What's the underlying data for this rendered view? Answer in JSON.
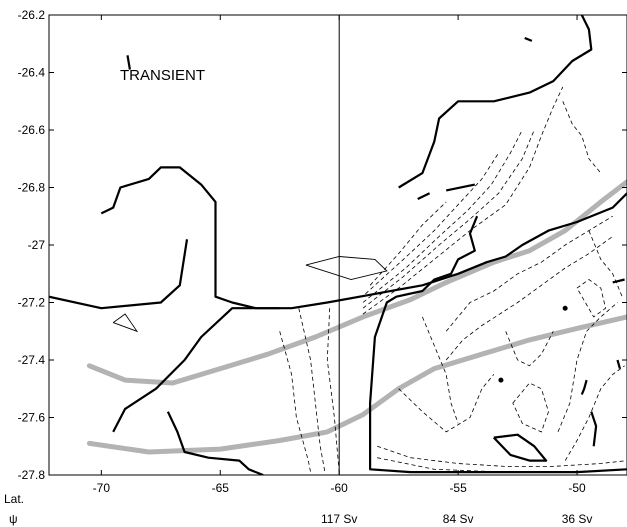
{
  "chart_data": {
    "type": "contour",
    "title": "",
    "xlabel": "",
    "ylabel": "",
    "xlim": [
      -72.2,
      -47.9
    ],
    "ylim": [
      -27.8,
      -26.2
    ],
    "x_ticks": [
      -70,
      -65,
      -60,
      -55,
      -50
    ],
    "y_ticks": [
      -26.2,
      -26.4,
      -26.6,
      -26.8,
      -27,
      -27.2,
      -27.4,
      -27.6,
      -27.8
    ],
    "y_tick_labels": [
      "-26.2",
      "-26.4",
      "-26.6",
      "-26.8",
      "-27",
      "-27.2",
      "-27.4",
      "-27.6",
      "-27.8"
    ],
    "x_tick_labels": [
      "-70",
      "-65",
      "-60",
      "-55",
      "-50"
    ],
    "annotation": "TRANSIENT",
    "row_labels": {
      "x": "Lat.",
      "psi": "ψ"
    },
    "transport_labels": [
      {
        "x": -60,
        "label": "117 Sv"
      },
      {
        "x": -55,
        "label": "84 Sv"
      },
      {
        "x": -50,
        "label": "36 Sv"
      }
    ],
    "vertical_line_x": -60,
    "gray_lines": [
      [
        [
          -70.5,
          -27.42
        ],
        [
          -69,
          -27.47
        ],
        [
          -67,
          -27.48
        ],
        [
          -65,
          -27.43
        ],
        [
          -63,
          -27.38
        ],
        [
          -61,
          -27.32
        ],
        [
          -59,
          -27.25
        ],
        [
          -57,
          -27.19
        ],
        [
          -55.5,
          -27.13
        ],
        [
          -53.5,
          -27.06
        ],
        [
          -52,
          -27.02
        ],
        [
          -50.5,
          -26.95
        ],
        [
          -49,
          -26.85
        ],
        [
          -47.9,
          -26.78
        ]
      ],
      [
        [
          -70.5,
          -27.69
        ],
        [
          -68,
          -27.72
        ],
        [
          -65,
          -27.71
        ],
        [
          -62.5,
          -27.68
        ],
        [
          -60.5,
          -27.65
        ],
        [
          -59,
          -27.59
        ],
        [
          -57.5,
          -27.5
        ],
        [
          -56,
          -27.43
        ],
        [
          -54,
          -27.38
        ],
        [
          -52,
          -27.33
        ],
        [
          -50,
          -27.29
        ],
        [
          -47.9,
          -27.25
        ]
      ]
    ],
    "solid_contours": [
      [
        [
          -72.2,
          -27.18
        ],
        [
          -70,
          -27.22
        ],
        [
          -67.5,
          -27.2
        ],
        [
          -66.7,
          -27.14
        ],
        [
          -66.4,
          -26.98
        ]
      ],
      [
        [
          -70,
          -26.89
        ],
        [
          -69.5,
          -26.87
        ],
        [
          -69.2,
          -26.8
        ],
        [
          -68,
          -26.77
        ],
        [
          -67.5,
          -26.73
        ],
        [
          -66.7,
          -26.73
        ],
        [
          -65.8,
          -26.79
        ],
        [
          -65.2,
          -26.85
        ],
        [
          -65.2,
          -27.18
        ],
        [
          -64.5,
          -27.2
        ],
        [
          -63.5,
          -27.22
        ],
        [
          -62,
          -27.22
        ],
        [
          -60.5,
          -27.2
        ],
        [
          -58.5,
          -27.17
        ],
        [
          -56.5,
          -27.14
        ],
        [
          -55,
          -27.1
        ],
        [
          -53.8,
          -27.06
        ],
        [
          -53,
          -27.04
        ],
        [
          -52.3,
          -27.0
        ],
        [
          -51.2,
          -26.95
        ],
        [
          -50,
          -26.92
        ],
        [
          -48.5,
          -26.87
        ],
        [
          -47.9,
          -26.82
        ]
      ],
      [
        [
          -69.5,
          -27.65
        ],
        [
          -69,
          -27.57
        ],
        [
          -67.7,
          -27.5
        ],
        [
          -66.5,
          -27.4
        ],
        [
          -65.8,
          -27.32
        ],
        [
          -64.5,
          -27.22
        ],
        [
          -62.5,
          -27.22
        ]
      ],
      [
        [
          -67.2,
          -27.58
        ],
        [
          -66.8,
          -27.65
        ],
        [
          -66.5,
          -27.72
        ],
        [
          -65.5,
          -27.74
        ],
        [
          -64.2,
          -27.75
        ],
        [
          -63.8,
          -27.78
        ],
        [
          -63.2,
          -27.8
        ]
      ],
      [
        [
          -57.5,
          -26.8
        ],
        [
          -56.5,
          -26.75
        ],
        [
          -56,
          -26.64
        ],
        [
          -55.8,
          -26.56
        ],
        [
          -55,
          -26.5
        ],
        [
          -53.5,
          -26.5
        ],
        [
          -52,
          -26.47
        ],
        [
          -51,
          -26.43
        ],
        [
          -50.2,
          -26.36
        ],
        [
          -49.4,
          -26.32
        ],
        [
          -49.5,
          -26.25
        ],
        [
          -49.8,
          -26.2
        ]
      ],
      [
        [
          -54.2,
          -26.9
        ],
        [
          -54.5,
          -26.96
        ],
        [
          -54.3,
          -27.02
        ],
        [
          -55,
          -27.05
        ],
        [
          -55.3,
          -27.1
        ],
        [
          -56,
          -27.12
        ],
        [
          -56.5,
          -27.16
        ],
        [
          -57.6,
          -27.18
        ],
        [
          -58,
          -27.2
        ],
        [
          -58.5,
          -27.32
        ],
        [
          -58.7,
          -27.55
        ],
        [
          -58.7,
          -27.78
        ],
        [
          -57,
          -27.79
        ],
        [
          -55,
          -27.79
        ],
        [
          -52,
          -27.79
        ],
        [
          -50,
          -27.79
        ],
        [
          -47.9,
          -27.78
        ]
      ],
      [
        [
          -53.5,
          -27.67
        ],
        [
          -52.5,
          -27.66
        ],
        [
          -51.8,
          -27.7
        ],
        [
          -51.3,
          -27.75
        ],
        [
          -52,
          -27.75
        ],
        [
          -52.8,
          -27.73
        ],
        [
          -53.5,
          -27.67
        ]
      ],
      [
        [
          -56.7,
          -26.84
        ],
        [
          -56.2,
          -26.82
        ]
      ],
      [
        [
          -55.5,
          -26.81
        ],
        [
          -54.3,
          -26.79
        ]
      ],
      [
        [
          -52.2,
          -26.28
        ],
        [
          -51.9,
          -26.29
        ]
      ],
      [
        [
          -68.9,
          -26.34
        ],
        [
          -68.8,
          -26.39
        ]
      ],
      [
        [
          -49.3,
          -27.7
        ],
        [
          -49.2,
          -27.63
        ],
        [
          -49.4,
          -27.58
        ]
      ],
      [
        [
          -48.5,
          -27.13
        ],
        [
          -48.0,
          -27.12
        ]
      ],
      [
        [
          -49.6,
          -27.47
        ],
        [
          -49.7,
          -27.5
        ],
        [
          -49.8,
          -27.52
        ]
      ],
      [
        [
          -48.3,
          -27.4
        ],
        [
          -48.2,
          -27.43
        ]
      ]
    ],
    "thin_contours": [
      [
        [
          -61.4,
          -27.07
        ],
        [
          -60,
          -27.04
        ],
        [
          -58.5,
          -27.05
        ],
        [
          -58,
          -27.09
        ],
        [
          -59.5,
          -27.12
        ],
        [
          -61.4,
          -27.07
        ]
      ],
      [
        [
          -69.5,
          -27.27
        ],
        [
          -69,
          -27.24
        ],
        [
          -68.5,
          -27.3
        ],
        [
          -69.5,
          -27.27
        ]
      ]
    ],
    "dashed_contours": [
      [
        [
          -59,
          -27.24
        ],
        [
          -57.5,
          -27.15
        ],
        [
          -56,
          -27.05
        ],
        [
          -54.5,
          -26.95
        ],
        [
          -53,
          -26.86
        ],
        [
          -52,
          -26.73
        ],
        [
          -51.5,
          -26.62
        ],
        [
          -51,
          -26.52
        ],
        [
          -50.6,
          -26.45
        ]
      ],
      [
        [
          -59,
          -27.22
        ],
        [
          -57.3,
          -27.11
        ],
        [
          -55.8,
          -27.0
        ],
        [
          -54.5,
          -26.91
        ],
        [
          -53.3,
          -26.82
        ],
        [
          -52.3,
          -26.7
        ],
        [
          -51.8,
          -26.6
        ]
      ],
      [
        [
          -59,
          -27.2
        ],
        [
          -57.2,
          -27.08
        ],
        [
          -55.8,
          -26.97
        ],
        [
          -54.6,
          -26.88
        ],
        [
          -53.6,
          -26.79
        ],
        [
          -52.8,
          -26.68
        ],
        [
          -52.3,
          -26.6
        ]
      ],
      [
        [
          -58.9,
          -27.17
        ],
        [
          -57.3,
          -27.05
        ],
        [
          -56,
          -26.95
        ],
        [
          -55,
          -26.86
        ],
        [
          -54,
          -26.77
        ],
        [
          -53.3,
          -26.68
        ]
      ],
      [
        [
          -58.7,
          -27.14
        ],
        [
          -57.5,
          -27.03
        ],
        [
          -56.5,
          -26.93
        ],
        [
          -55.5,
          -26.85
        ]
      ],
      [
        [
          -62.5,
          -27.3
        ],
        [
          -62,
          -27.45
        ],
        [
          -61.8,
          -27.6
        ],
        [
          -61.3,
          -27.75
        ],
        [
          -61.2,
          -27.79
        ]
      ],
      [
        [
          -61.7,
          -27.22
        ],
        [
          -61.2,
          -27.4
        ],
        [
          -61,
          -27.55
        ],
        [
          -60.8,
          -27.7
        ],
        [
          -60.6,
          -27.79
        ]
      ],
      [
        [
          -60.4,
          -27.22
        ],
        [
          -60.5,
          -27.4
        ],
        [
          -60.2,
          -27.6
        ],
        [
          -60,
          -27.79
        ]
      ],
      [
        [
          -58.4,
          -27.7
        ],
        [
          -57,
          -27.74
        ],
        [
          -55,
          -27.76
        ],
        [
          -53,
          -27.77
        ],
        [
          -51,
          -27.77
        ],
        [
          -49,
          -27.76
        ],
        [
          -47.9,
          -27.75
        ]
      ],
      [
        [
          -58.4,
          -27.74
        ],
        [
          -56,
          -27.78
        ],
        [
          -53,
          -27.79
        ],
        [
          -50,
          -27.79
        ],
        [
          -47.9,
          -27.78
        ]
      ],
      [
        [
          -55.5,
          -27.3
        ],
        [
          -54.5,
          -27.2
        ],
        [
          -53.5,
          -27.16
        ],
        [
          -52.5,
          -27.1
        ],
        [
          -51.5,
          -27.06
        ],
        [
          -50.5,
          -27.0
        ],
        [
          -49.5,
          -26.95
        ],
        [
          -48.5,
          -26.9
        ]
      ],
      [
        [
          -55.5,
          -27.4
        ],
        [
          -54.8,
          -27.33
        ],
        [
          -54,
          -27.28
        ],
        [
          -52.5,
          -27.2
        ],
        [
          -51.5,
          -27.14
        ],
        [
          -50.5,
          -27.08
        ],
        [
          -49.5,
          -27.03
        ],
        [
          -48.5,
          -26.97
        ]
      ],
      [
        [
          -57.5,
          -27.5
        ],
        [
          -56.5,
          -27.58
        ],
        [
          -55.5,
          -27.65
        ],
        [
          -54.5,
          -27.6
        ],
        [
          -54,
          -27.5
        ],
        [
          -53.5,
          -27.45
        ]
      ],
      [
        [
          -52.7,
          -27.55
        ],
        [
          -52,
          -27.48
        ],
        [
          -51.5,
          -27.5
        ],
        [
          -51.2,
          -27.58
        ],
        [
          -51.5,
          -27.65
        ],
        [
          -52.3,
          -27.62
        ],
        [
          -52.7,
          -27.55
        ]
      ],
      [
        [
          -50.8,
          -27.65
        ],
        [
          -50.3,
          -27.55
        ],
        [
          -50,
          -27.4
        ],
        [
          -49.6,
          -27.3
        ],
        [
          -49,
          -27.25
        ],
        [
          -48.3,
          -27.2
        ]
      ],
      [
        [
          -50.6,
          -26.5
        ],
        [
          -50.2,
          -26.58
        ],
        [
          -49.8,
          -26.62
        ],
        [
          -49.5,
          -26.7
        ],
        [
          -49,
          -26.75
        ]
      ],
      [
        [
          -49.5,
          -26.95
        ],
        [
          -49,
          -27.05
        ],
        [
          -48.5,
          -27.1
        ],
        [
          -48.1,
          -27.18
        ]
      ],
      [
        [
          -50.5,
          -27.75
        ],
        [
          -50,
          -27.68
        ],
        [
          -49.5,
          -27.6
        ],
        [
          -49,
          -27.5
        ],
        [
          -48.5,
          -27.45
        ],
        [
          -48,
          -27.42
        ]
      ],
      [
        [
          -56.5,
          -27.25
        ],
        [
          -56,
          -27.35
        ],
        [
          -55.5,
          -27.45
        ],
        [
          -55.3,
          -27.55
        ],
        [
          -55,
          -27.62
        ]
      ],
      [
        [
          -53,
          -27.3
        ],
        [
          -52.5,
          -27.4
        ],
        [
          -52,
          -27.42
        ],
        [
          -51.5,
          -27.38
        ],
        [
          -51,
          -27.3
        ]
      ],
      [
        [
          -50,
          -27.15
        ],
        [
          -49.5,
          -27.12
        ],
        [
          -49,
          -27.15
        ],
        [
          -48.8,
          -27.22
        ],
        [
          -49.3,
          -27.25
        ],
        [
          -50,
          -27.15
        ]
      ]
    ],
    "markers": [
      [
        -50.5,
        -27.22
      ],
      [
        -53.2,
        -27.47
      ]
    ]
  }
}
